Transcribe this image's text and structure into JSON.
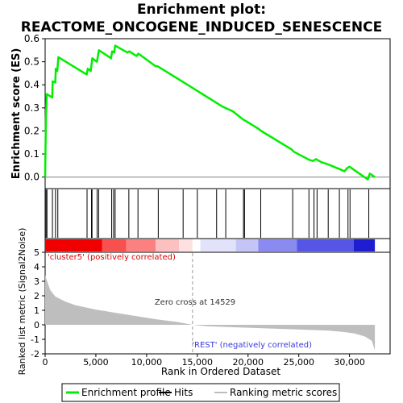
{
  "chart_data": {
    "type": "line",
    "title_line1": "Enrichment plot:",
    "title_line2": "REACTOME_ONCOGENE_INDUCED_SENESCENCE",
    "es_panel": {
      "ylabel": "Enrichment score (ES)",
      "ylim": [
        -0.05,
        0.6
      ],
      "yticks": [
        0.0,
        0.1,
        0.2,
        0.3,
        0.4,
        0.5,
        0.6
      ],
      "ytick_labels": [
        "0.0",
        "0.1",
        "0.2",
        "0.3",
        "0.4",
        "0.5",
        "0.6"
      ],
      "line_color": "#00ee00",
      "points": [
        [
          0,
          0.0
        ],
        [
          80,
          0.26
        ],
        [
          160,
          0.36
        ],
        [
          700,
          0.345
        ],
        [
          750,
          0.415
        ],
        [
          1000,
          0.41
        ],
        [
          1050,
          0.47
        ],
        [
          1200,
          0.46
        ],
        [
          1300,
          0.52
        ],
        [
          4100,
          0.445
        ],
        [
          4200,
          0.47
        ],
        [
          4500,
          0.46
        ],
        [
          4650,
          0.515
        ],
        [
          5100,
          0.5
        ],
        [
          5200,
          0.525
        ],
        [
          5300,
          0.55
        ],
        [
          6500,
          0.515
        ],
        [
          6600,
          0.545
        ],
        [
          6800,
          0.54
        ],
        [
          6900,
          0.57
        ],
        [
          8100,
          0.54
        ],
        [
          8300,
          0.545
        ],
        [
          9000,
          0.525
        ],
        [
          9200,
          0.535
        ],
        [
          10900,
          0.48
        ],
        [
          11100,
          0.48
        ],
        [
          13500,
          0.415
        ],
        [
          15500,
          0.36
        ],
        [
          17500,
          0.305
        ],
        [
          18500,
          0.285
        ],
        [
          19500,
          0.25
        ],
        [
          19700,
          0.245
        ],
        [
          21000,
          0.21
        ],
        [
          21300,
          0.2
        ],
        [
          24300,
          0.12
        ],
        [
          24500,
          0.11
        ],
        [
          25800,
          0.08
        ],
        [
          26000,
          0.075
        ],
        [
          26400,
          0.07
        ],
        [
          26700,
          0.078
        ],
        [
          27200,
          0.065
        ],
        [
          27900,
          0.055
        ],
        [
          28700,
          0.04
        ],
        [
          29000,
          0.035
        ],
        [
          29500,
          0.025
        ],
        [
          29800,
          0.04
        ],
        [
          30000,
          0.045
        ],
        [
          31800,
          -0.01
        ],
        [
          32000,
          0.015
        ],
        [
          32500,
          0.0
        ]
      ]
    },
    "hits": [
      90,
      180,
      720,
      1020,
      1250,
      4130,
      4570,
      4620,
      5120,
      5280,
      6560,
      6750,
      6900,
      8250,
      9150,
      11150,
      13600,
      15000,
      16900,
      17800,
      19550,
      19650,
      21250,
      24400,
      26000,
      26500,
      26800,
      27900,
      29000,
      29850,
      30050,
      31900
    ],
    "ranked_list": {
      "ylabel": "Ranked list metric (Signal2Noise)",
      "ylim": [
        -2,
        5
      ],
      "yticks": [
        -2,
        -1,
        0,
        1,
        2,
        3,
        4,
        5
      ],
      "ytick_labels": [
        "-2",
        "-1",
        "0",
        "1",
        "2",
        "3",
        "4",
        "5"
      ],
      "fill_color": "#bebebe",
      "metric_curve": [
        [
          0,
          3.4
        ],
        [
          200,
          3.0
        ],
        [
          500,
          2.4
        ],
        [
          1000,
          1.95
        ],
        [
          2000,
          1.6
        ],
        [
          3000,
          1.35
        ],
        [
          5000,
          1.05
        ],
        [
          7000,
          0.82
        ],
        [
          9000,
          0.6
        ],
        [
          11000,
          0.38
        ],
        [
          13000,
          0.2
        ],
        [
          14529,
          0.0
        ],
        [
          16000,
          -0.1
        ],
        [
          18000,
          -0.15
        ],
        [
          20000,
          -0.2
        ],
        [
          22000,
          -0.25
        ],
        [
          24000,
          -0.3
        ],
        [
          26000,
          -0.35
        ],
        [
          28000,
          -0.4
        ],
        [
          29500,
          -0.5
        ],
        [
          30500,
          -0.6
        ],
        [
          31500,
          -0.8
        ],
        [
          32200,
          -1.1
        ],
        [
          32500,
          -1.75
        ]
      ],
      "zero_cross_label": "Zero cross at 14529",
      "zero_cross_rank": 14529,
      "pos_label": "'cluster5' (positively correlated)",
      "neg_label": "'REST' (negatively correlated)",
      "pos_color": "#dd0000",
      "neg_color": "#3b3bdd"
    },
    "xaxis": {
      "xlabel": "Rank in Ordered Dataset",
      "xlim": [
        0,
        34000
      ],
      "xticks": [
        0,
        5000,
        10000,
        15000,
        20000,
        25000,
        30000
      ],
      "xtick_labels": [
        "0",
        "5,000",
        "10,000",
        "15,000",
        "20,000",
        "25,000",
        "30,000"
      ],
      "max_rank": 32500
    },
    "legend": {
      "placement": "bottom",
      "entries": [
        {
          "label": "Enrichment profile",
          "color": "#00ee00",
          "kind": "line"
        },
        {
          "label": "Hits",
          "color": "#000000",
          "kind": "line"
        },
        {
          "label": "Ranking metric scores",
          "color": "#bebebe",
          "kind": "line"
        }
      ]
    },
    "heatmap_bands": [
      {
        "from": 0,
        "to": 5600,
        "color": "#f00000"
      },
      {
        "from": 5600,
        "to": 8000,
        "color": "#f84f4f"
      },
      {
        "from": 8000,
        "to": 10900,
        "color": "#fb8080"
      },
      {
        "from": 10900,
        "to": 13200,
        "color": "#fdc0c0"
      },
      {
        "from": 13200,
        "to": 14529,
        "color": "#fde0e0"
      },
      {
        "from": 14529,
        "to": 15300,
        "color": "#ffffff"
      },
      {
        "from": 15300,
        "to": 18800,
        "color": "#e2e2fb"
      },
      {
        "from": 18800,
        "to": 21000,
        "color": "#c4c4f6"
      },
      {
        "from": 21000,
        "to": 24800,
        "color": "#8a8af0"
      },
      {
        "from": 24800,
        "to": 30400,
        "color": "#5656e6"
      },
      {
        "from": 30400,
        "to": 32500,
        "color": "#1e1ed0"
      }
    ]
  }
}
